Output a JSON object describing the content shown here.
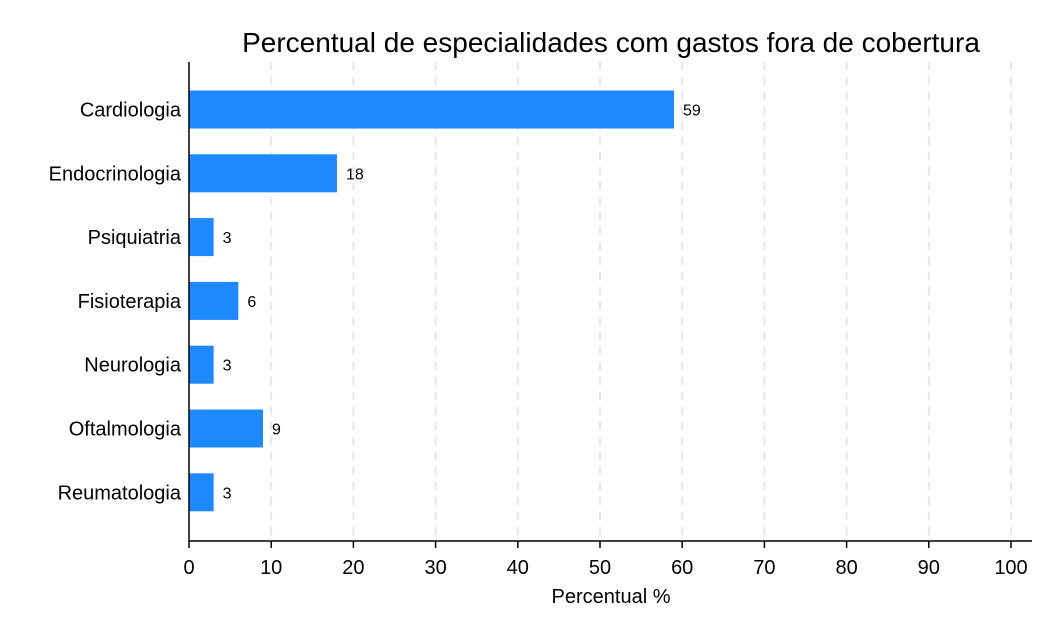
{
  "chart_data": {
    "type": "bar",
    "orientation": "horizontal",
    "title": "Percentual de especialidades com gastos fora de cobertura",
    "xlabel": "Percentual %",
    "ylabel": "",
    "categories": [
      "Cardiologia",
      "Endocrinologia",
      "Psiquiatria",
      "Fisioterapia",
      "Neurologia",
      "Oftalmologia",
      "Reumatologia"
    ],
    "values": [
      59,
      18,
      3,
      6,
      3,
      9,
      3
    ],
    "value_labels": [
      "59",
      "18",
      "3",
      "6",
      "3",
      "9",
      "3"
    ],
    "xlim": [
      0,
      100
    ],
    "xticks": [
      "0",
      "10",
      "20",
      "30",
      "40",
      "50",
      "60",
      "70",
      "80",
      "90",
      "100"
    ],
    "grid": "vertical dashed",
    "legend": "none",
    "bar_color": "#1E88FF",
    "grid_color": "#E6E6E6"
  }
}
